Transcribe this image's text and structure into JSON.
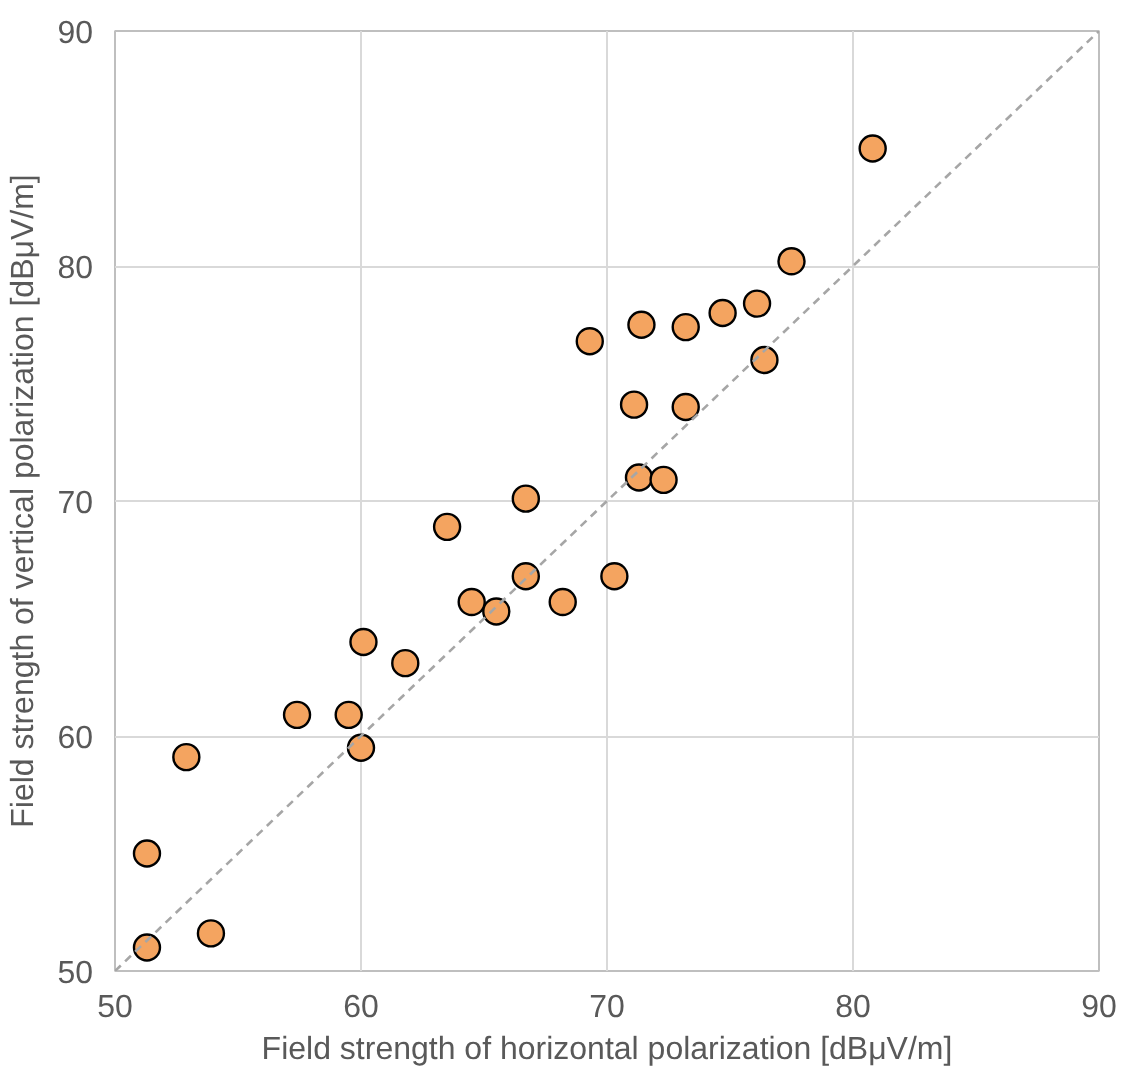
{
  "chart_data": {
    "type": "scatter",
    "xlabel": "Field strength of horizontal polarization [dBμV/m]",
    "ylabel": "Field strength of vertical polarization [dBμV/m]",
    "xlim": [
      50,
      90
    ],
    "ylim": [
      50,
      90
    ],
    "xticks": [
      50,
      60,
      70,
      80,
      90
    ],
    "yticks": [
      50,
      60,
      70,
      80,
      90
    ],
    "grid": true,
    "series": [
      {
        "marker": "circle",
        "color": "#f4a460",
        "x": [
          51.3,
          51.3,
          53.9,
          52.9,
          57.4,
          59.5,
          60.0,
          60.1,
          61.8,
          63.5,
          64.5,
          65.5,
          66.7,
          66.7,
          68.2,
          69.3,
          70.3,
          71.1,
          71.3,
          71.4,
          72.3,
          73.2,
          73.2,
          74.7,
          76.1,
          76.4,
          77.5,
          80.8
        ],
        "values": [
          51.0,
          55.0,
          51.6,
          59.1,
          60.9,
          60.9,
          59.5,
          64.0,
          63.1,
          68.9,
          65.7,
          65.3,
          70.1,
          66.8,
          65.7,
          76.8,
          66.8,
          74.1,
          71.0,
          77.5,
          70.9,
          77.4,
          74.0,
          78.0,
          78.4,
          76.0,
          80.2,
          85.0
        ]
      },
      {
        "type": "line",
        "color": "#a6a6a6",
        "line_style": "dashed",
        "x": [
          50,
          90
        ],
        "values": [
          50,
          90
        ]
      }
    ]
  }
}
